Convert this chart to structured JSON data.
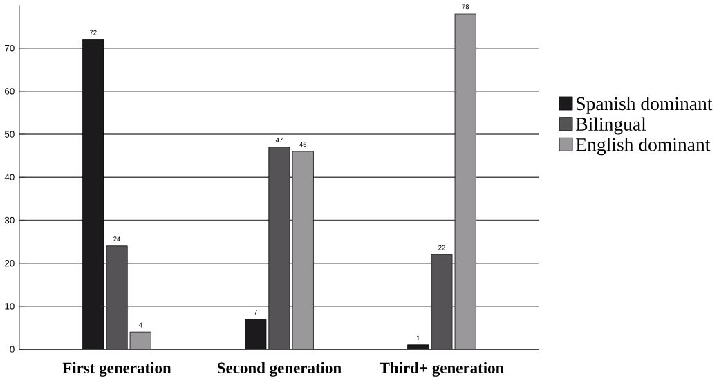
{
  "chart_data": {
    "type": "bar",
    "categories": [
      "First generation",
      "Second generation",
      "Third+ generation"
    ],
    "series": [
      {
        "name": "Spanish dominant",
        "color": "#1c1a1c",
        "values": [
          72,
          7,
          1
        ]
      },
      {
        "name": "Bilingual",
        "color": "#555356",
        "values": [
          24,
          47,
          22
        ]
      },
      {
        "name": "English dominant",
        "color": "#9a989a",
        "values": [
          4,
          46,
          78
        ]
      }
    ],
    "ylim": [
      0,
      80
    ],
    "yticks": [
      0,
      10,
      20,
      30,
      40,
      50,
      60,
      70
    ],
    "grid": "y",
    "legend": "right",
    "data_labels": true
  }
}
